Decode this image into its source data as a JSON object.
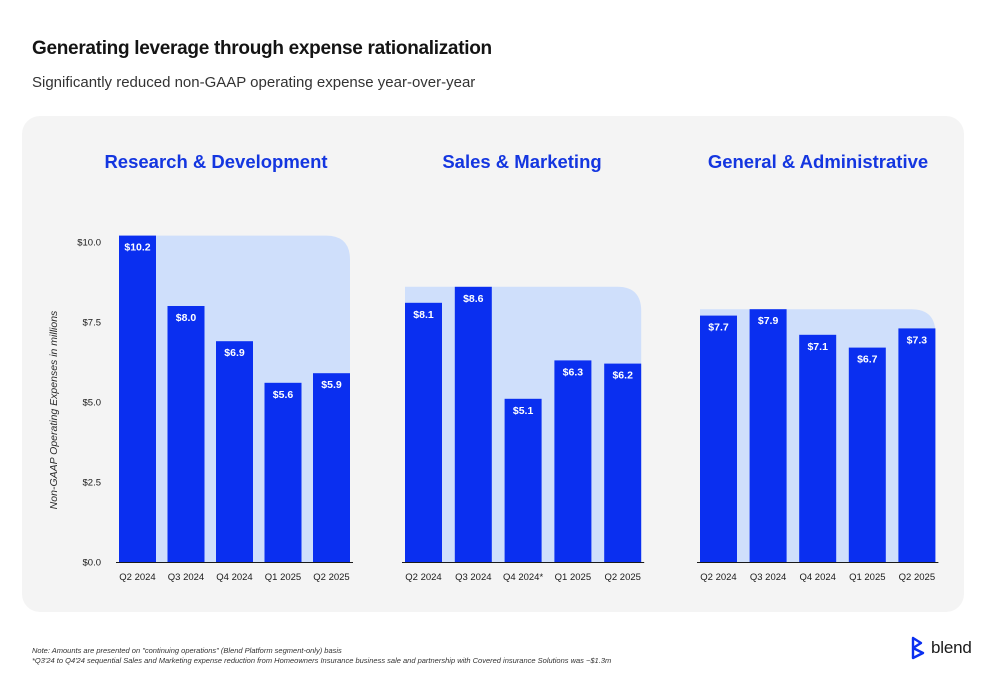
{
  "header": {
    "title": "Generating leverage through expense rationalization",
    "subtitle": "Significantly reduced non-GAAP operating expense year-over-year"
  },
  "colors": {
    "bar": "#0a2ff0",
    "highlight": "#cfdffb",
    "panel": "#f4f4f4",
    "chart_title": "#1436e0"
  },
  "chart_data": [
    {
      "type": "bar",
      "title": "Research & Development",
      "ylabel": "Non-GAAP Operating Expenses in millions",
      "ylim": [
        0,
        10
      ],
      "yticks": [
        "$0.0",
        "$2.5",
        "$5.0",
        "$7.5",
        "$10.0"
      ],
      "categories": [
        "Q2 2024",
        "Q3 2024",
        "Q4 2024",
        "Q1 2025",
        "Q2 2025"
      ],
      "values": [
        10.2,
        8.0,
        6.9,
        5.6,
        5.9
      ],
      "labels": [
        "$10.2",
        "$8.0",
        "$6.9",
        "$5.6",
        "$5.9"
      ]
    },
    {
      "type": "bar",
      "title": "Sales & Marketing",
      "ylim": [
        0,
        10
      ],
      "categories": [
        "Q2 2024",
        "Q3 2024",
        "Q4 2024*",
        "Q1 2025",
        "Q2 2025"
      ],
      "values": [
        8.1,
        8.6,
        5.1,
        6.3,
        6.2
      ],
      "labels": [
        "$8.1",
        "$8.6",
        "$5.1",
        "$6.3",
        "$6.2"
      ]
    },
    {
      "type": "bar",
      "title": "General & Administrative",
      "ylim": [
        0,
        10
      ],
      "categories": [
        "Q2 2024",
        "Q3 2024",
        "Q4 2024",
        "Q1 2025",
        "Q2 2025"
      ],
      "values": [
        7.7,
        7.9,
        7.1,
        6.7,
        7.3
      ],
      "labels": [
        "$7.7",
        "$7.9",
        "$7.1",
        "$6.7",
        "$7.3"
      ]
    }
  ],
  "footnotes": [
    "Note: Amounts are presented on \"continuing operations\" (Blend Platform segment-only) basis",
    "*Q3'24 to Q4'24 sequential Sales and Marketing expense reduction from Homeowners Insurance business sale and partnership with Covered insurance Solutions was ~$1.3m"
  ],
  "logo": {
    "text": "blend",
    "icon": "blend-logo-icon"
  }
}
